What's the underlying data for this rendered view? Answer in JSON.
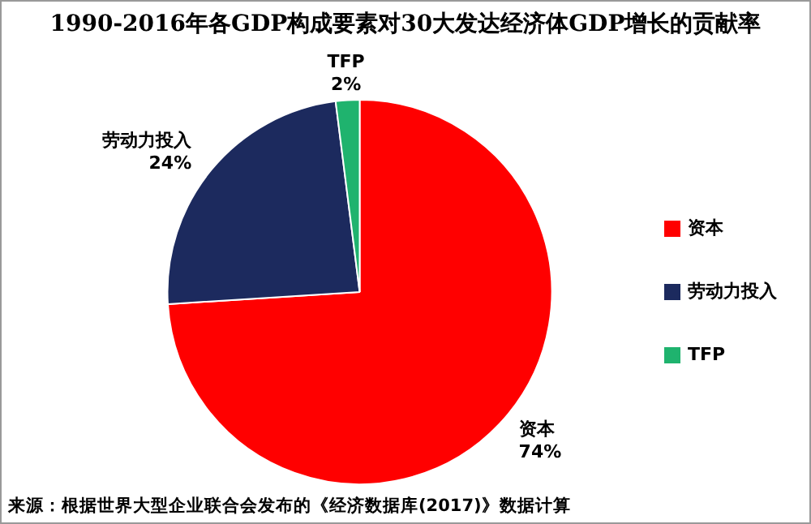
{
  "chart_data": {
    "type": "pie",
    "title": "1990-2016年各GDP构成要素对30大发达经济体GDP增长的贡献率",
    "categories": [
      "资本",
      "劳动力投入",
      "TFP"
    ],
    "values": [
      74,
      24,
      2
    ],
    "value_labels": [
      "74%",
      "24%",
      "2%"
    ],
    "colors": [
      "#ff0000",
      "#1c2a5e",
      "#1fb36e"
    ],
    "legend": "right",
    "annotations": [
      "来源：根据世界大型企业联合会发布的《经济数据库(2017)》数据计算"
    ]
  }
}
